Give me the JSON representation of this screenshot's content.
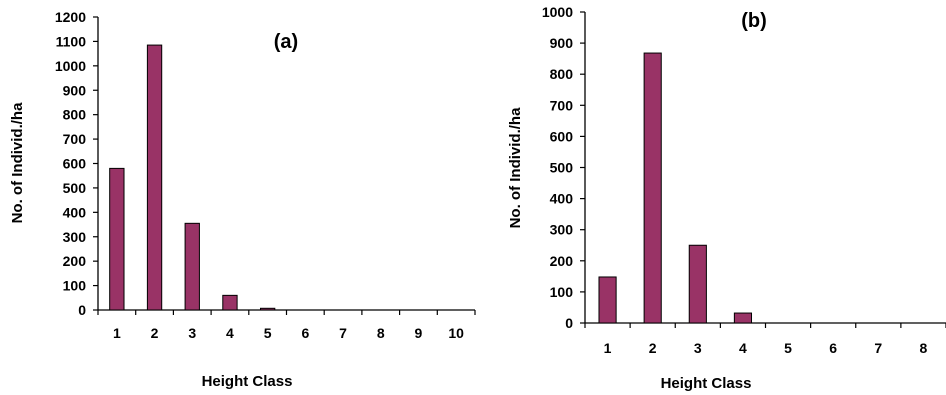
{
  "chart_data": [
    {
      "type": "bar",
      "title": "(a)",
      "xlabel": "Height Class",
      "ylabel": "No. of Individ./ha",
      "categories": [
        "1",
        "2",
        "3",
        "4",
        "5",
        "6",
        "7",
        "8",
        "9",
        "10"
      ],
      "values": [
        580,
        1085,
        355,
        60,
        7,
        0,
        0,
        0,
        0,
        0
      ],
      "ylim": [
        0,
        1200
      ],
      "yticks": [
        "0",
        "100",
        "200",
        "300",
        "400",
        "500",
        "600",
        "700",
        "800",
        "900",
        "1000",
        "1100",
        "1200"
      ],
      "bar_color": "#993366",
      "grid": false
    },
    {
      "type": "bar",
      "title": "(b)",
      "xlabel": "Height Class",
      "ylabel": "No. of Individ./ha",
      "categories": [
        "1",
        "2",
        "3",
        "4",
        "5",
        "6",
        "7",
        "8"
      ],
      "values": [
        148,
        868,
        250,
        32,
        0,
        0,
        0,
        0
      ],
      "ylim": [
        0,
        1000
      ],
      "yticks": [
        "0",
        "100",
        "200",
        "300",
        "400",
        "500",
        "600",
        "700",
        "800",
        "900",
        "1000"
      ],
      "bar_color": "#993366",
      "grid": false
    }
  ]
}
